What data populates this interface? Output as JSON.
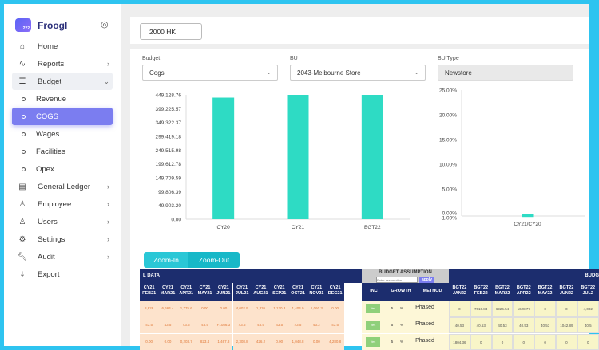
{
  "app": {
    "name": "Froogl",
    "badge": "222"
  },
  "nav": {
    "home": "Home",
    "reports": "Reports",
    "budget": "Budget",
    "sub": [
      "Revenue",
      "COGS",
      "Wages",
      "Facilities",
      "Opex"
    ],
    "general_ledger": "General Ledger",
    "employee": "Employee",
    "users": "Users",
    "settings": "Settings",
    "audit": "Audit",
    "export": "Export"
  },
  "top": {
    "currency_value": "2000 HK"
  },
  "filters": {
    "budget_label": "Budget",
    "budget_value": "Cogs",
    "bu_label": "BU",
    "bu_value": "2043-Melbourne Store",
    "bu_type_label": "BU Type",
    "bu_type_value": "Newstore"
  },
  "chart_data": [
    {
      "type": "bar",
      "categories": [
        "CY20",
        "CY21",
        "BGT22"
      ],
      "values": [
        439000,
        449128.76,
        449128.76
      ],
      "yticks": [
        "449,128.76",
        "399,225.57",
        "349,322.37",
        "299,419.18",
        "249,515.98",
        "199,612.78",
        "149,709.59",
        "99,806.39",
        "49,903.20",
        "0.00"
      ],
      "ylim": [
        0,
        449128.76
      ],
      "color": "#2edbc4"
    },
    {
      "type": "bar",
      "categories": [
        "CY21/CY20"
      ],
      "values": [
        -0.3
      ],
      "yticks": [
        "25.00%",
        "20.00%",
        "15.00%",
        "10.00%",
        "5.00%",
        "0.00%",
        "-1.00%"
      ],
      "ylim": [
        -1,
        25
      ],
      "color": "#2edbc4"
    }
  ],
  "zoom": {
    "in": "Zoom-In",
    "out": "Zoom-Out"
  },
  "table": {
    "actual_header": "L DATA",
    "assumption_header": "BUDGET ASSUMPTION",
    "assumption_placeholder": "Enter assumption",
    "apply": "apply",
    "budget_header": "BUDG",
    "cy_cols": [
      "CY21 FEB21",
      "CY21 MAR21",
      "CY21 APR21",
      "CY21 MAY21",
      "CY21 JUN21",
      "CY21 JUL21",
      "CY21 AUG21",
      "CY21 SEP21",
      "CY21 OCT21",
      "CY21 NOV21",
      "CY21 DEC21"
    ],
    "inc": "INC",
    "growth": "GROWTH",
    "method": "METHOD",
    "bgt_cols": [
      "BGT22 JAN22",
      "BGT22 FEB22",
      "BGT22 MAR22",
      "BGT22 APR22",
      "BGT22 MAY22",
      "BGT22 JUN22",
      "BGT22 JUL2"
    ],
    "rows": [
      {
        "cy": [
          "8,828",
          "6,664.4",
          "1,775.6",
          "0.00",
          "0.00",
          "4,002.9",
          "1,336",
          "1,120.3",
          "1,404.9",
          "1,060.3",
          "0.00"
        ],
        "method": "Phased",
        "bgt": [
          "0",
          "7010.84",
          "6926.54",
          "1628.77",
          "0",
          "0",
          "4,002"
        ]
      },
      {
        "cy": [
          "43.5",
          "43.5",
          "43.5",
          "43.5",
          "F1086.3",
          "43.5",
          "43.5",
          "43.5",
          "43.5",
          "43.2",
          "43.5"
        ],
        "method": "Phased",
        "bgt": [
          "40.53",
          "40.53",
          "40.53",
          "40.53",
          "40.53",
          "1042.89",
          "40.5"
        ]
      },
      {
        "cy": [
          "0.00",
          "0.00",
          "0,203.7",
          "823.4",
          "1,467.8",
          "2,308.8",
          "426.2",
          "0.00",
          "1,048.8",
          "0.00",
          "4,280.8"
        ],
        "method": "Phased",
        "bgt": [
          "1804.36",
          "0",
          "0",
          "0",
          "0",
          "0",
          "0"
        ]
      }
    ]
  }
}
